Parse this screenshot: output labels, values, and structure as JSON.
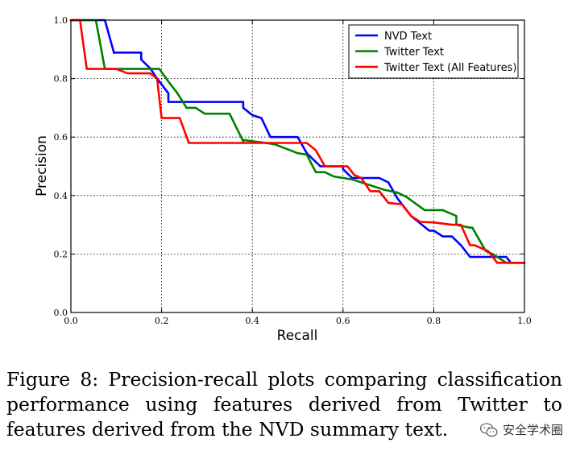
{
  "chart_data": {
    "type": "line",
    "xlabel": "Recall",
    "ylabel": "Precision",
    "xlim": [
      0.0,
      1.0
    ],
    "ylim": [
      0.0,
      1.0
    ],
    "xticks": [
      "0.0",
      "0.2",
      "0.4",
      "0.6",
      "0.8",
      "1.0"
    ],
    "yticks": [
      "0.0",
      "0.2",
      "0.4",
      "0.6",
      "0.8",
      "1.0"
    ],
    "grid": true,
    "legend_position": "top-right",
    "series": [
      {
        "name": "NVD Text",
        "color": "#0000ff",
        "x": [
          0.0,
          0.075,
          0.095,
          0.095,
          0.155,
          0.155,
          0.175,
          0.19,
          0.215,
          0.215,
          0.38,
          0.38,
          0.4,
          0.42,
          0.44,
          0.44,
          0.5,
          0.52,
          0.55,
          0.57,
          0.6,
          0.6,
          0.62,
          0.68,
          0.7,
          0.72,
          0.75,
          0.79,
          0.8,
          0.82,
          0.84,
          0.86,
          0.88,
          0.95,
          0.96,
          0.97,
          1.0
        ],
        "y": [
          1.0,
          1.0,
          0.888,
          0.889,
          0.889,
          0.865,
          0.835,
          0.8,
          0.75,
          0.72,
          0.72,
          0.7,
          0.675,
          0.665,
          0.6,
          0.6,
          0.6,
          0.545,
          0.5,
          0.5,
          0.5,
          0.49,
          0.46,
          0.46,
          0.445,
          0.39,
          0.33,
          0.28,
          0.28,
          0.26,
          0.26,
          0.23,
          0.19,
          0.19,
          0.19,
          0.17,
          0.17
        ]
      },
      {
        "name": "Twitter Text",
        "color": "#008000",
        "x": [
          0.0,
          0.055,
          0.075,
          0.075,
          0.1,
          0.18,
          0.195,
          0.215,
          0.235,
          0.255,
          0.275,
          0.295,
          0.35,
          0.38,
          0.38,
          0.43,
          0.45,
          0.5,
          0.52,
          0.54,
          0.56,
          0.58,
          0.6,
          0.62,
          0.67,
          0.69,
          0.72,
          0.74,
          0.78,
          0.78,
          0.82,
          0.835,
          0.85,
          0.85,
          0.88,
          0.885,
          0.915,
          0.93,
          0.96,
          0.98,
          1.0
        ],
        "y": [
          1.0,
          1.0,
          0.833,
          0.833,
          0.833,
          0.833,
          0.833,
          0.79,
          0.75,
          0.7,
          0.7,
          0.68,
          0.68,
          0.585,
          0.59,
          0.58,
          0.575,
          0.545,
          0.54,
          0.48,
          0.48,
          0.465,
          0.46,
          0.455,
          0.43,
          0.42,
          0.41,
          0.395,
          0.35,
          0.35,
          0.35,
          0.34,
          0.33,
          0.3,
          0.29,
          0.29,
          0.21,
          0.2,
          0.17,
          0.17,
          0.17
        ]
      },
      {
        "name": "Twitter Text (All Features)",
        "color": "#ff0000",
        "x": [
          0.0,
          0.02,
          0.035,
          0.1,
          0.125,
          0.175,
          0.19,
          0.2,
          0.24,
          0.26,
          0.29,
          0.3,
          0.5,
          0.52,
          0.54,
          0.56,
          0.6,
          0.61,
          0.625,
          0.64,
          0.66,
          0.68,
          0.7,
          0.73,
          0.75,
          0.77,
          0.8,
          0.84,
          0.86,
          0.88,
          0.88,
          0.89,
          0.92,
          0.94,
          0.97,
          1.0
        ],
        "y": [
          1.0,
          1.0,
          0.833,
          0.833,
          0.818,
          0.818,
          0.8,
          0.665,
          0.665,
          0.58,
          0.58,
          0.58,
          0.58,
          0.58,
          0.555,
          0.5,
          0.5,
          0.5,
          0.47,
          0.46,
          0.415,
          0.415,
          0.375,
          0.37,
          0.33,
          0.31,
          0.308,
          0.3,
          0.3,
          0.23,
          0.23,
          0.23,
          0.21,
          0.17,
          0.17,
          0.17
        ]
      }
    ]
  },
  "caption": "Figure 8: Precision-recall plots comparing classification performance using features derived from Twitter to features derived from the NVD summary text.",
  "watermark": {
    "icon": "wechat-icon",
    "text": "安全学术圈"
  }
}
